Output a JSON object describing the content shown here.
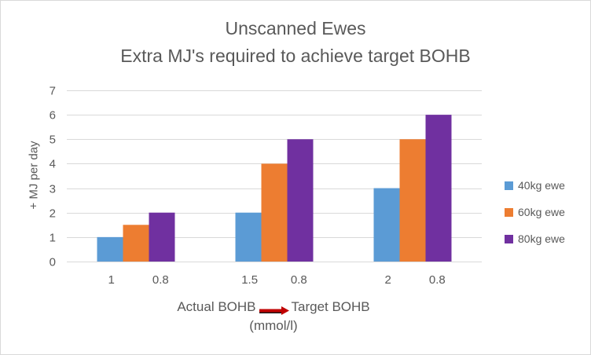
{
  "chart_data": {
    "type": "bar",
    "title": "Unscanned Ewes",
    "subtitle": "Extra MJ's required to achieve target BOHB",
    "ylabel": "+ MJ per day",
    "xlabel_left": "Actual BOHB",
    "xlabel_right": "Target BOHB",
    "xlabel_units": "(mmol/l)",
    "ylim": [
      0,
      7
    ],
    "yticks": [
      "0",
      "1",
      "2",
      "3",
      "4",
      "5",
      "6",
      "7"
    ],
    "grid": true,
    "legend_position": "right",
    "categories": [
      {
        "actual": "1",
        "target": "0.8"
      },
      {
        "actual": "1.5",
        "target": "0.8"
      },
      {
        "actual": "2",
        "target": "0.8"
      }
    ],
    "series": [
      {
        "name": "40kg ewe",
        "color": "#5b9bd5",
        "values": [
          1,
          2,
          3
        ]
      },
      {
        "name": "60kg ewe",
        "color": "#ed7d31",
        "values": [
          1.5,
          4,
          5
        ]
      },
      {
        "name": "80kg ewe",
        "color": "#7030a0",
        "values": [
          2,
          5,
          6
        ]
      }
    ]
  },
  "arrow_icon": "right-arrow-icon",
  "arrow_color": "#c00000"
}
